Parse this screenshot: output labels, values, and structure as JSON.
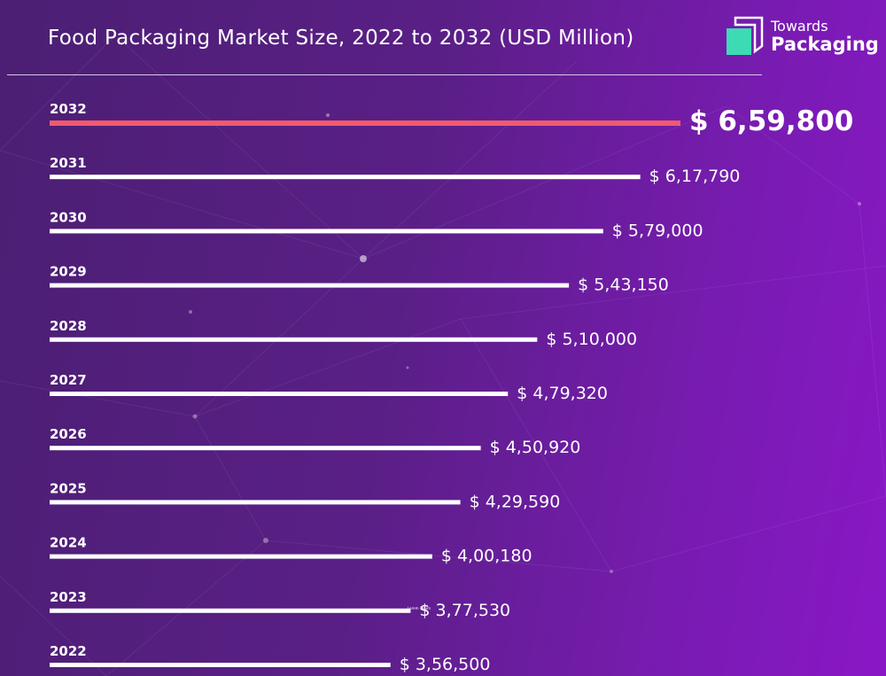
{
  "header": {
    "title": "Food Packaging Market Size, 2022 to 2032 (USD Million)"
  },
  "logo": {
    "line1": "Towards",
    "line2": "Packaging",
    "mark_color": "#3ddbb4",
    "mark_outline_color": "#ffffff"
  },
  "watermark": {
    "text": "Lorem Ipsum"
  },
  "colors": {
    "bar": "#ffffff",
    "highlight_bar": "#f05a6e",
    "text": "#ffffff"
  },
  "chart_data": {
    "type": "bar",
    "orientation": "horizontal",
    "title": "Food Packaging Market Size, 2022 to 2032 (USD Million)",
    "categories": [
      "2032",
      "2031",
      "2030",
      "2029",
      "2028",
      "2027",
      "2026",
      "2025",
      "2024",
      "2023",
      "2022"
    ],
    "values": [
      659800,
      617790,
      579000,
      543150,
      510000,
      479320,
      450920,
      429590,
      400180,
      377530,
      356500
    ],
    "value_labels": [
      "$ 6,59,800",
      "$ 6,17,790",
      "$ 5,79,000",
      "$ 5,43,150",
      "$ 5,10,000",
      "$ 4,79,320",
      "$ 4,50,920",
      "$ 4,29,590",
      "$ 4,00,180",
      "$ 3,77,530",
      "$ 3,56,500"
    ],
    "highlight": "2032",
    "xlabel": "",
    "ylabel": "",
    "grid": false,
    "legend": "none"
  }
}
